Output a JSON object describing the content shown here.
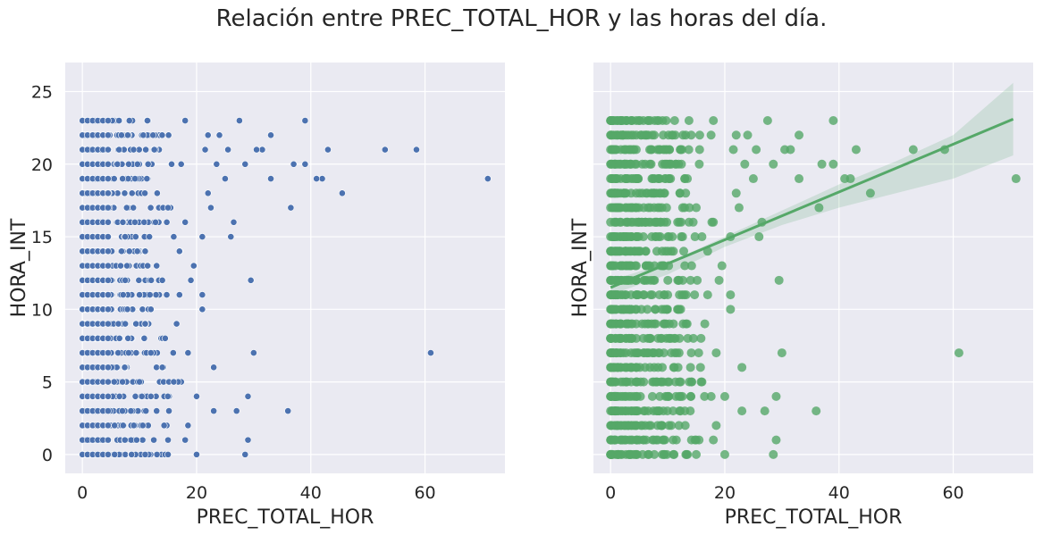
{
  "title": "Relación entre PREC_TOTAL_HOR y las horas del día.",
  "colors": {
    "panel_bg": "#eaeaf2",
    "grid": "#ffffff",
    "left_points": "#4c72b0",
    "right_points": "#55a868"
  },
  "chart_data": [
    {
      "type": "scatter",
      "xlabel": "PREC_TOTAL_HOR",
      "ylabel": "HORA_INT",
      "xlim": [
        -3,
        74
      ],
      "ylim": [
        -1.3,
        27
      ],
      "xticks": [
        0,
        20,
        40,
        60
      ],
      "yticks": [
        0,
        5,
        10,
        15,
        20,
        25
      ],
      "grid": true,
      "marker_color": "#4c72b0",
      "points": [
        [
          71,
          19
        ],
        [
          61,
          7
        ],
        [
          58.5,
          21
        ],
        [
          53,
          21
        ],
        [
          45.5,
          18
        ],
        [
          43,
          21
        ],
        [
          42,
          19
        ],
        [
          41,
          19
        ],
        [
          39,
          23
        ],
        [
          39,
          20
        ],
        [
          37,
          20
        ],
        [
          36.5,
          17
        ],
        [
          36,
          3
        ],
        [
          33,
          22
        ],
        [
          33,
          19
        ],
        [
          31.5,
          21
        ],
        [
          30.5,
          21
        ],
        [
          30,
          7
        ],
        [
          29.5,
          12
        ],
        [
          29,
          4
        ],
        [
          29,
          1
        ],
        [
          28.5,
          0
        ],
        [
          28.5,
          20
        ],
        [
          27.5,
          23
        ],
        [
          27,
          3
        ],
        [
          26.5,
          16
        ],
        [
          26,
          15
        ],
        [
          25.5,
          21
        ],
        [
          25,
          19
        ],
        [
          24,
          22
        ],
        [
          23.5,
          20
        ],
        [
          23,
          3
        ],
        [
          23,
          6
        ],
        [
          22.5,
          17
        ],
        [
          22,
          22
        ],
        [
          22,
          18
        ],
        [
          21.5,
          21
        ],
        [
          21,
          15
        ],
        [
          21,
          11
        ],
        [
          21,
          10
        ],
        [
          20,
          0
        ],
        [
          20,
          4
        ],
        [
          19.5,
          13
        ],
        [
          19,
          12
        ],
        [
          18.5,
          7
        ],
        [
          18.5,
          2
        ],
        [
          18,
          1
        ],
        [
          18,
          16
        ],
        [
          18,
          23
        ],
        [
          17,
          14
        ],
        [
          17,
          11
        ],
        [
          16.5,
          9
        ],
        [
          16,
          15
        ],
        [
          16,
          5
        ],
        [
          15,
          1
        ],
        [
          15,
          0
        ],
        [
          15,
          17
        ],
        [
          14.5,
          8
        ],
        [
          14,
          12
        ],
        [
          14,
          6
        ],
        [
          13,
          13
        ],
        [
          13,
          3
        ],
        [
          12,
          10
        ],
        [
          12,
          4
        ],
        [
          12,
          7
        ],
        [
          11,
          9
        ],
        [
          11,
          14
        ],
        [
          11,
          0
        ],
        [
          10,
          5
        ],
        [
          10,
          11
        ],
        [
          9.5,
          1
        ],
        [
          9,
          2
        ],
        [
          8.5,
          3
        ],
        [
          7.5,
          12
        ],
        [
          6.5,
          8
        ]
      ],
      "dense_block": {
        "x_max": 18,
        "y_values": [
          0,
          23
        ]
      }
    },
    {
      "type": "scatter",
      "xlabel": "PREC_TOTAL_HOR",
      "ylabel": "HORA_INT",
      "xlim": [
        -3,
        74
      ],
      "ylim": [
        -1.3,
        27
      ],
      "xticks": [
        0,
        20,
        40,
        60
      ],
      "yticks": [
        0,
        5,
        10,
        15,
        20,
        25
      ],
      "grid": true,
      "marker_color": "#55a868",
      "regression": {
        "x": [
          0,
          70.5
        ],
        "y": [
          11.5,
          23.1
        ]
      },
      "confidence_band": {
        "x": [
          0,
          10,
          20,
          30,
          40,
          50,
          60,
          70.5
        ],
        "lower": [
          11.0,
          12.4,
          14.3,
          15.8,
          17.0,
          18.0,
          19.0,
          20.6
        ],
        "upper": [
          12.0,
          13.2,
          15.0,
          16.8,
          18.6,
          20.2,
          22.0,
          25.6
        ]
      }
    }
  ]
}
